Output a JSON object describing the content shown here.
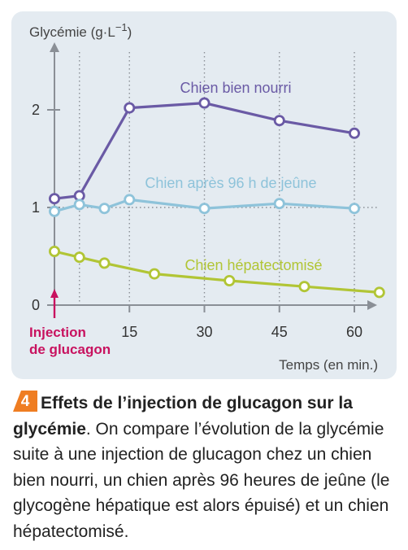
{
  "chart_data": {
    "type": "line",
    "ylabel": "Glycémie (g·L",
    "ylabel_exp": "−1",
    "xlabel": "Temps (en min.)",
    "xlim": [
      -5,
      66
    ],
    "ylim": [
      0,
      2.65
    ],
    "x_ticks": [
      15,
      30,
      45,
      60
    ],
    "y_ticks": [
      0,
      1,
      2
    ],
    "grid": "dotted vertical at 0, 15, 30, 45, 60; dotted horizontal at 1",
    "injection_label_line1": "Injection",
    "injection_label_line2": "de glucagon",
    "injection_color": "#c8125f",
    "series": [
      {
        "name": "Chien bien nourri",
        "color": "#6a5aa5",
        "x": [
          0,
          5,
          15,
          30,
          45,
          60
        ],
        "y": [
          1.09,
          1.12,
          2.02,
          2.07,
          1.89,
          1.76
        ]
      },
      {
        "name": "Chien après 96 h de jeûne",
        "color": "#8ec3da",
        "x": [
          0,
          5,
          10,
          15,
          30,
          45,
          60
        ],
        "y": [
          0.96,
          1.03,
          0.99,
          1.08,
          0.99,
          1.04,
          0.99
        ]
      },
      {
        "name": "Chien hépatectomisé",
        "color": "#b1c535",
        "x": [
          0,
          5,
          10,
          20,
          35,
          50,
          65
        ],
        "y": [
          0.55,
          0.49,
          0.43,
          0.32,
          0.25,
          0.19,
          0.13
        ]
      }
    ]
  },
  "caption": {
    "number": "4",
    "badge_color": "#ef7d22",
    "title": "Effets de l’injection de glucagon sur la glycémie",
    "text": ". On compare l’évolution de la glycémie suite à une injection de glucagon chez un chien bien nourri, un chien après 96 heures de jeûne (le glycogène hépatique est alors épuisé) et un chien hépatectomisé."
  }
}
